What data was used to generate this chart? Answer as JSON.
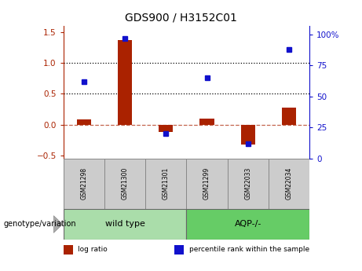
{
  "title": "GDS900 / H3152C01",
  "samples": [
    "GSM21298",
    "GSM21300",
    "GSM21301",
    "GSM21299",
    "GSM22033",
    "GSM22034"
  ],
  "log_ratio": [
    0.08,
    1.37,
    -0.12,
    0.1,
    -0.32,
    0.27
  ],
  "percentile_rank": [
    0.62,
    0.97,
    0.2,
    0.65,
    0.12,
    0.88
  ],
  "bar_color": "#aa2200",
  "dot_color": "#1111cc",
  "groups": [
    {
      "label": "wild type",
      "indices": [
        0,
        1,
        2
      ],
      "color": "#aaddaa"
    },
    {
      "label": "AQP-/-",
      "indices": [
        3,
        4,
        5
      ],
      "color": "#66cc66"
    }
  ],
  "ylim_left": [
    -0.55,
    1.6
  ],
  "ylim_right": [
    0,
    107
  ],
  "yticks_left": [
    -0.5,
    0.0,
    0.5,
    1.0,
    1.5
  ],
  "yticks_right": [
    0,
    25,
    50,
    75,
    100
  ],
  "ytick_labels_right": [
    "0",
    "25",
    "50",
    "75",
    "100%"
  ],
  "hlines": [
    0.5,
    1.0
  ],
  "zero_line": 0.0,
  "bg_color": "#ffffff",
  "plot_bg": "#ffffff",
  "genotype_label": "genotype/variation",
  "legend_items": [
    {
      "label": "log ratio",
      "color": "#aa2200"
    },
    {
      "label": "percentile rank within the sample",
      "color": "#1111cc"
    }
  ],
  "sample_box_color": "#cccccc",
  "sample_box_edge": "#888888",
  "group_box_edge": "#666666"
}
